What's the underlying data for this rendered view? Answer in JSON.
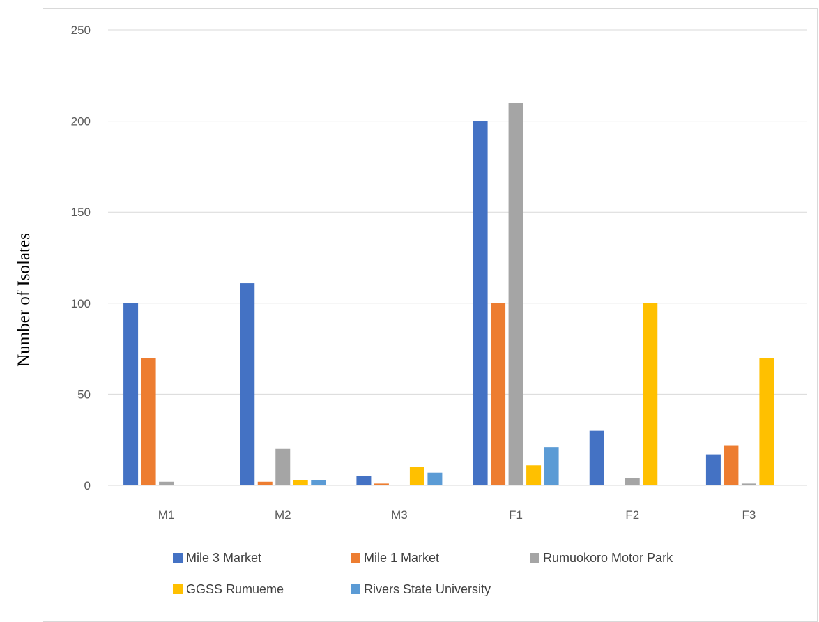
{
  "chart_data": {
    "type": "bar",
    "ylabel": "Number of Isolates",
    "xlabel": "",
    "ylim": [
      0,
      250
    ],
    "yticks": [
      0,
      50,
      100,
      150,
      200,
      250
    ],
    "grid": true,
    "legend_position": "bottom",
    "categories": [
      "M1",
      "M2",
      "M3",
      "F1",
      "F2",
      "F3"
    ],
    "series": [
      {
        "name": "Mile 3 Market",
        "color": "#4472C4",
        "values": [
          100,
          111,
          5,
          200,
          30,
          17
        ]
      },
      {
        "name": "Mile 1 Market",
        "color": "#ED7D31",
        "values": [
          70,
          2,
          1,
          100,
          0,
          22
        ]
      },
      {
        "name": "Rumuokoro Motor Park",
        "color": "#A5A5A5",
        "values": [
          2,
          20,
          0,
          210,
          4,
          1
        ]
      },
      {
        "name": "GGSS Rumueme",
        "color": "#FFC000",
        "values": [
          0,
          3,
          10,
          11,
          100,
          70
        ]
      },
      {
        "name": "Rivers State University",
        "color": "#5B9BD5",
        "values": [
          0,
          3,
          7,
          21,
          0,
          0
        ]
      }
    ]
  }
}
